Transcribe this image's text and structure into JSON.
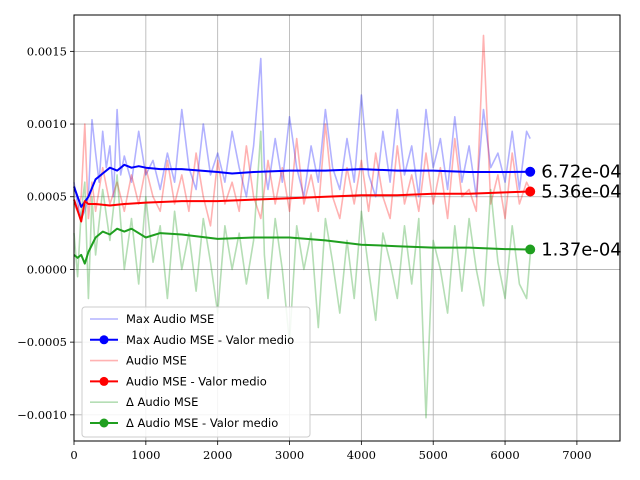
{
  "chart_data": {
    "type": "line",
    "title": "",
    "xlabel": "",
    "ylabel": "",
    "xlim": [
      0,
      7600
    ],
    "ylim": [
      -0.00118,
      0.00175
    ],
    "x_ticks": [
      0,
      1000,
      2000,
      3000,
      4000,
      5000,
      6000,
      7000
    ],
    "y_ticks": [
      -0.001,
      -0.0005,
      0.0,
      0.0005,
      0.001,
      0.0015
    ],
    "y_tick_labels": [
      "−0.0010",
      "−0.0005",
      "0.0000",
      "0.0005",
      "0.0010",
      "0.0015"
    ],
    "grid": true,
    "legend_position": "lower-left",
    "series": [
      {
        "name": "Max Audio MSE",
        "color": "#0000ff",
        "alpha": 0.3,
        "x": [
          0,
          50,
          100,
          150,
          200,
          250,
          300,
          350,
          400,
          450,
          500,
          550,
          600,
          650,
          700,
          800,
          900,
          1000,
          1100,
          1200,
          1300,
          1400,
          1500,
          1600,
          1700,
          1800,
          1900,
          2000,
          2100,
          2200,
          2300,
          2400,
          2500,
          2600,
          2650,
          2700,
          2800,
          2900,
          3000,
          3100,
          3200,
          3300,
          3400,
          3500,
          3600,
          3700,
          3800,
          3900,
          4000,
          4100,
          4200,
          4300,
          4400,
          4500,
          4600,
          4700,
          4800,
          4900,
          5000,
          5100,
          5200,
          5300,
          5400,
          5500,
          5600,
          5700,
          5800,
          5900,
          6000,
          6100,
          6200,
          6300,
          6350
        ],
        "values": [
          0.0006,
          0.00045,
          0.00035,
          0.0004,
          0.0005,
          0.00103,
          0.0008,
          0.0006,
          0.00095,
          0.0007,
          0.00085,
          0.0005,
          0.0011,
          0.00065,
          0.00078,
          0.0006,
          0.00095,
          0.00065,
          0.00075,
          0.00055,
          0.0008,
          0.0006,
          0.0011,
          0.0007,
          0.00055,
          0.001,
          0.00065,
          0.0008,
          0.0006,
          0.00095,
          0.0007,
          0.0005,
          0.00085,
          0.00145,
          0.0007,
          0.00055,
          0.0009,
          0.0006,
          0.00105,
          0.0007,
          0.0005,
          0.00085,
          0.0006,
          0.0011,
          0.0007,
          0.00055,
          0.0009,
          0.0006,
          0.0012,
          0.00065,
          0.0005,
          0.00095,
          0.0006,
          0.0011,
          0.00065,
          0.00085,
          0.0005,
          0.0011,
          0.0007,
          0.0009,
          0.00055,
          0.00105,
          0.0006,
          0.00085,
          0.0005,
          0.0011,
          0.0007,
          0.0008,
          0.0006,
          0.00095,
          0.00055,
          0.00095,
          0.0009
        ]
      },
      {
        "name": "Max Audio MSE - Valor medio",
        "color": "#0000ff",
        "x": [
          0,
          100,
          200,
          300,
          400,
          500,
          600,
          700,
          800,
          900,
          1000,
          1200,
          1500,
          2000,
          2200,
          2500,
          3000,
          3500,
          4000,
          4500,
          5000,
          5500,
          6000,
          6350
        ],
        "values": [
          0.00057,
          0.00043,
          0.0005,
          0.00062,
          0.00066,
          0.0007,
          0.00068,
          0.00072,
          0.0007,
          0.00071,
          0.0007,
          0.00069,
          0.00069,
          0.00067,
          0.00066,
          0.00067,
          0.00068,
          0.00068,
          0.00069,
          0.00068,
          0.00068,
          0.00067,
          0.00067,
          0.000672
        ],
        "end_label": "6.72e-04"
      },
      {
        "name": "Audio MSE",
        "color": "#ff0000",
        "alpha": 0.3,
        "x": [
          0,
          50,
          100,
          150,
          200,
          250,
          300,
          400,
          500,
          600,
          700,
          800,
          900,
          1000,
          1100,
          1200,
          1300,
          1400,
          1500,
          1600,
          1700,
          1800,
          1900,
          2000,
          2100,
          2200,
          2300,
          2400,
          2500,
          2600,
          2700,
          2800,
          2900,
          3000,
          3100,
          3200,
          3300,
          3400,
          3500,
          3600,
          3700,
          3800,
          3900,
          4000,
          4100,
          4200,
          4300,
          4400,
          4500,
          4600,
          4700,
          4800,
          4900,
          5000,
          5100,
          5200,
          5300,
          5400,
          5500,
          5600,
          5700,
          5800,
          5900,
          6000,
          6100,
          6200,
          6300,
          6350
        ],
        "values": [
          0.00045,
          0.0004,
          0.0005,
          0.001,
          0.00035,
          0.0006,
          0.0004,
          0.0007,
          0.00045,
          0.0006,
          0.0004,
          0.00065,
          0.00045,
          0.0007,
          0.0005,
          0.0004,
          0.00075,
          0.00045,
          0.00065,
          0.0004,
          0.0008,
          0.0005,
          0.0003,
          0.00075,
          0.00045,
          0.0006,
          0.0004,
          0.00085,
          0.0005,
          0.00035,
          0.00075,
          0.00045,
          0.0007,
          0.0004,
          0.0009,
          0.00045,
          0.00065,
          0.0004,
          0.001,
          0.0005,
          0.00035,
          0.0007,
          0.00045,
          0.00075,
          0.0004,
          0.0008,
          0.0005,
          0.00035,
          0.00085,
          0.00045,
          0.00065,
          0.0004,
          0.0008,
          0.00045,
          0.0007,
          0.00035,
          0.0009,
          0.0005,
          0.00055,
          0.0004,
          0.00161,
          0.00045,
          0.00065,
          0.00035,
          0.0008,
          0.00045,
          0.0006,
          0.00055
        ]
      },
      {
        "name": "Audio MSE - Valor medio",
        "color": "#ff0000",
        "x": [
          0,
          100,
          150,
          200,
          300,
          500,
          700,
          1000,
          1500,
          2000,
          2500,
          3000,
          3500,
          4000,
          4500,
          5000,
          5500,
          6000,
          6350
        ],
        "values": [
          0.00048,
          0.00033,
          0.00047,
          0.00045,
          0.00045,
          0.00044,
          0.00045,
          0.00046,
          0.00047,
          0.00047,
          0.00048,
          0.00049,
          0.0005,
          0.00051,
          0.00051,
          0.00052,
          0.00052,
          0.00053,
          0.000536
        ],
        "end_label": "5.36e-04"
      },
      {
        "name": "Δ Audio MSE",
        "color": "#2ca02c",
        "alpha": 0.35,
        "x": [
          0,
          50,
          100,
          150,
          200,
          250,
          300,
          400,
          500,
          600,
          700,
          800,
          900,
          1000,
          1100,
          1200,
          1300,
          1400,
          1500,
          1600,
          1700,
          1800,
          1900,
          2000,
          2100,
          2200,
          2300,
          2400,
          2500,
          2600,
          2650,
          2700,
          2800,
          2900,
          3000,
          3100,
          3200,
          3300,
          3400,
          3500,
          3600,
          3700,
          3800,
          3900,
          4000,
          4100,
          4200,
          4300,
          4400,
          4500,
          4600,
          4700,
          4800,
          4900,
          5000,
          5100,
          5200,
          5300,
          5400,
          5500,
          5600,
          5700,
          5800,
          5900,
          6000,
          6100,
          6200,
          6300,
          6350
        ],
        "values": [
          0.00025,
          -5e-05,
          0.0004,
          0.0006,
          -0.0002,
          0.0005,
          0.0001,
          0.00055,
          0.0002,
          0.00065,
          0.0,
          0.00035,
          -0.0001,
          0.0005,
          5e-05,
          0.0003,
          -0.0002,
          0.0004,
          0.0,
          0.00025,
          -0.00015,
          0.00035,
          5e-05,
          -0.0003,
          0.0003,
          0.0,
          0.00025,
          -0.0001,
          0.0002,
          0.00095,
          0.0001,
          -0.0002,
          0.00035,
          0.0,
          -0.0005,
          0.0003,
          0.0,
          0.00025,
          -0.0004,
          0.00035,
          5e-05,
          -0.0003,
          0.0002,
          -0.0002,
          0.0004,
          0.0,
          -0.00035,
          0.00025,
          5e-05,
          -0.0002,
          0.0003,
          -0.0001,
          0.00035,
          -0.00102,
          0.0002,
          0.0,
          -0.0003,
          0.0003,
          -0.00015,
          0.00035,
          0.0,
          -0.00025,
          0.00055,
          5e-05,
          -0.0002,
          0.0003,
          -0.0001,
          -0.0002,
          0.0001
        ]
      },
      {
        "name": "Δ Audio MSE - Valor medio",
        "color": "#1f9f1f",
        "x": [
          0,
          50,
          100,
          150,
          200,
          300,
          400,
          500,
          600,
          700,
          800,
          1000,
          1200,
          1500,
          2000,
          2500,
          3000,
          3500,
          4000,
          4500,
          5000,
          5500,
          6000,
          6350
        ],
        "values": [
          0.0001,
          8e-05,
          0.0001,
          4e-05,
          0.00012,
          0.00022,
          0.00026,
          0.00024,
          0.00028,
          0.00026,
          0.00028,
          0.00022,
          0.00025,
          0.00024,
          0.00021,
          0.00022,
          0.00022,
          0.0002,
          0.00017,
          0.00016,
          0.00015,
          0.00015,
          0.00014,
          0.000137
        ],
        "end_label": "1.37e-04"
      }
    ]
  }
}
